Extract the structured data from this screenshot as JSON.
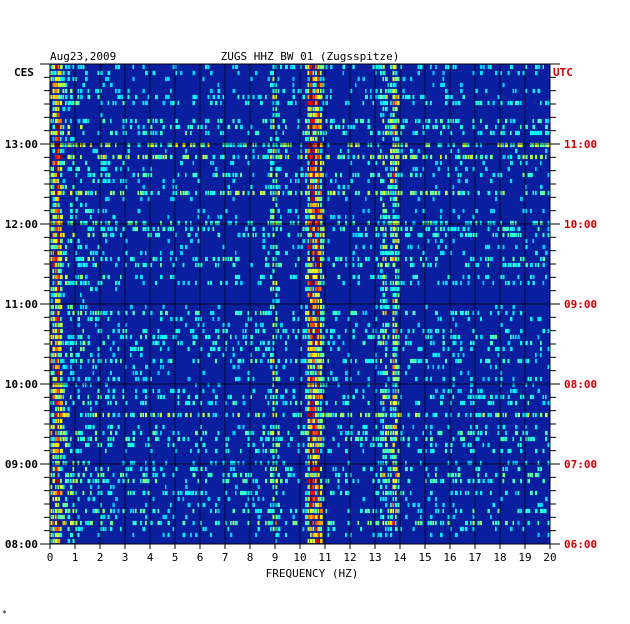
{
  "chart_data": {
    "type": "heatmap",
    "title": "ZUGS HHZ BW 01 (Zugsspitze)",
    "date": "Aug23,2009",
    "xlabel": "FREQUENCY (HZ)",
    "xlim": [
      0,
      20
    ],
    "x_ticks": [
      "0",
      "1",
      "2",
      "3",
      "4",
      "5",
      "6",
      "7",
      "8",
      "9",
      "10",
      "11",
      "12",
      "13",
      "14",
      "15",
      "16",
      "17",
      "18",
      "19",
      "20"
    ],
    "left_axis_label": "CES",
    "right_axis_label": "UTC",
    "left_time_ticks": [
      "13:00",
      "12:00",
      "11:00",
      "10:00",
      "09:00",
      "08:00"
    ],
    "right_time_ticks": [
      "11:00",
      "10:00",
      "09:00",
      "08:00",
      "07:00",
      "06:00"
    ],
    "time_range_ces": [
      "08:00",
      "14:00"
    ],
    "colors": {
      "background_field": "#0a1ea0",
      "grid": "#000000",
      "utc_text": "#d00000",
      "text": "#000000"
    },
    "persistent_bands_hz": [
      {
        "center": 0.3,
        "strength": 0.65
      },
      {
        "center": 9.0,
        "strength": 0.35
      },
      {
        "center": 10.45,
        "strength": 0.9
      },
      {
        "center": 10.75,
        "strength": 0.85
      },
      {
        "center": 13.8,
        "strength": 0.55
      },
      {
        "center": 13.4,
        "strength": 0.35
      }
    ],
    "corner_mark": "*"
  }
}
